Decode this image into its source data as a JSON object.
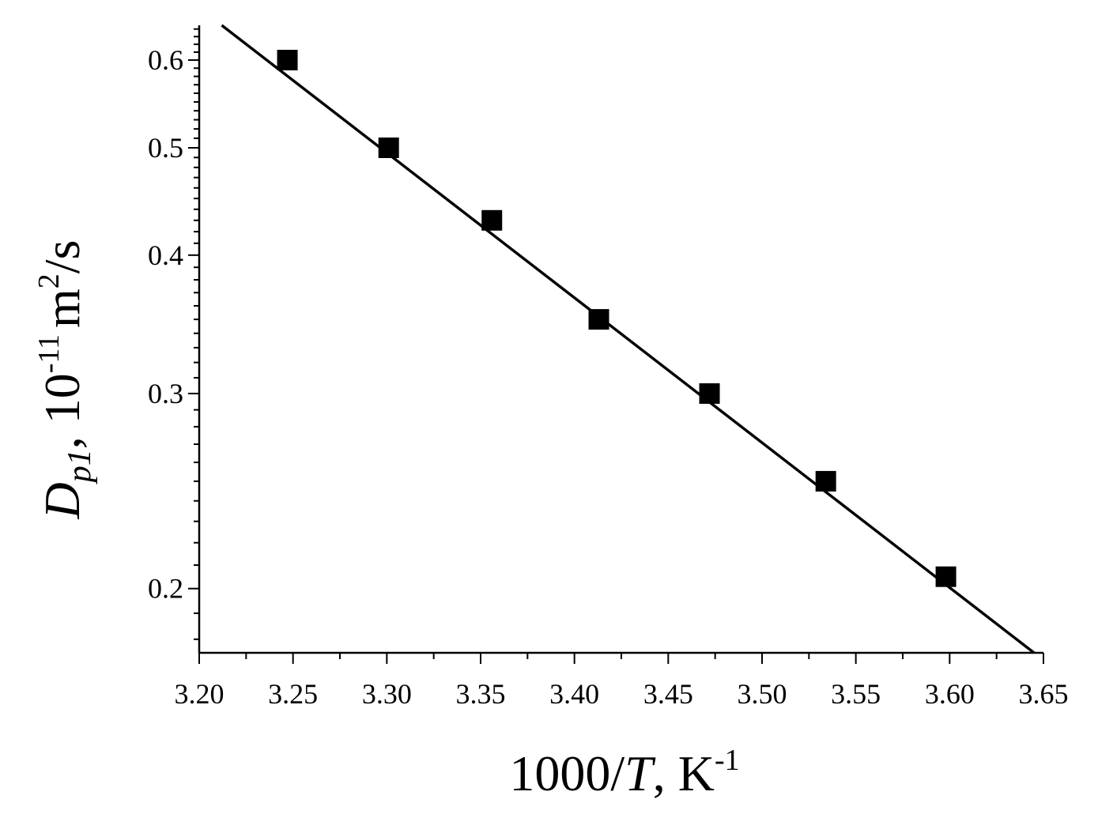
{
  "chart_data": {
    "type": "scatter",
    "title": "",
    "xlabel": {
      "main": "1000/",
      "var": "T",
      "unit": ", K",
      "sup": "-1"
    },
    "ylabel": {
      "main": "D",
      "sub": "p1",
      "unit": ", 10",
      "sup1": "-11",
      "unit2": "m",
      "sup2": "2",
      "unit3": "/s"
    },
    "x_axis": {
      "range": [
        3.2,
        3.65
      ],
      "ticks": [
        3.2,
        3.25,
        3.3,
        3.35,
        3.4,
        3.45,
        3.5,
        3.55,
        3.6,
        3.65
      ],
      "tick_labels": [
        "3.20",
        "3.25",
        "3.30",
        "3.35",
        "3.40",
        "3.45",
        "3.50",
        "3.55",
        "3.60",
        "3.65"
      ],
      "minor_step": 0.025
    },
    "y_axis": {
      "scale": "log",
      "range": [
        0.175,
        0.645
      ],
      "ticks": [
        0.2,
        0.3,
        0.4,
        0.5,
        0.6
      ],
      "tick_labels": [
        "0.2",
        "0.3",
        "0.4",
        "0.5",
        "0.6"
      ]
    },
    "series": [
      {
        "marker": "square",
        "color": "#000000",
        "x": [
          3.247,
          3.301,
          3.356,
          3.413,
          3.472,
          3.534,
          3.598
        ],
        "y": [
          0.6,
          0.5,
          0.43,
          0.35,
          0.3,
          0.25,
          0.205
        ]
      }
    ],
    "fit_line": {
      "type": "linear-in-log",
      "x": [
        3.212,
        3.645
      ],
      "y": [
        0.645,
        0.175
      ]
    },
    "grid": false,
    "legend": "none"
  }
}
